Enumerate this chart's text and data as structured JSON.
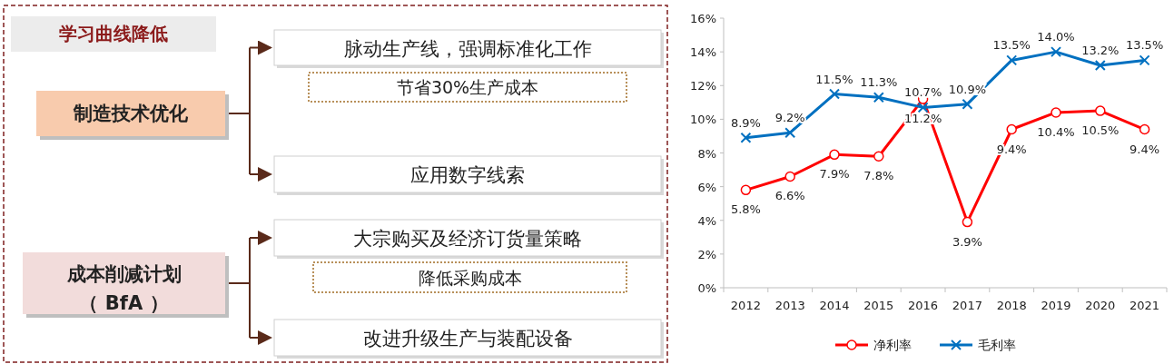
{
  "chart_data": [
    {
      "type": "other",
      "title": "学习曲线降低",
      "annotations": [
        "制造技术优化",
        "脉动生产线，强调标准化工作",
        "节省30%生产成本",
        "应用数字线索",
        "成本削减计划",
        "（ BfA ）",
        "大宗购买及经济订货量策略",
        "降低采购成本",
        "改进升级生产与装配设备"
      ]
    },
    {
      "type": "line",
      "categories": [
        "2012",
        "2013",
        "2014",
        "2015",
        "2016",
        "2017",
        "2018",
        "2019",
        "2020",
        "2021"
      ],
      "series": [
        {
          "name": "净利率",
          "color": "#ff0000",
          "marker": "circle",
          "values": [
            5.8,
            6.6,
            7.9,
            7.8,
            11.2,
            3.9,
            9.4,
            10.4,
            10.5,
            9.4
          ],
          "value_labels": [
            "5.8%",
            "6.6%",
            "7.9%",
            "7.8%",
            "11.2%",
            "3.9%",
            "9.4%",
            "10.4%",
            "10.5%",
            "9.4%"
          ]
        },
        {
          "name": "毛利率",
          "color": "#0070c0",
          "marker": "cross",
          "values": [
            8.9,
            9.2,
            11.5,
            11.3,
            10.7,
            10.9,
            13.5,
            14.0,
            13.2,
            13.5
          ],
          "value_labels": [
            "8.9%",
            "9.2%",
            "11.5%",
            "11.3%",
            "10.7%",
            "10.9%",
            "13.5%",
            "14.0%",
            "13.2%",
            "13.5%"
          ]
        }
      ],
      "ylim": [
        0,
        16
      ],
      "yticks": [
        {
          "value": 0,
          "label": "0%"
        },
        {
          "value": 2,
          "label": "2%"
        },
        {
          "value": 4,
          "label": "4%"
        },
        {
          "value": 6,
          "label": "6%"
        },
        {
          "value": 8,
          "label": "8%"
        },
        {
          "value": 10,
          "label": "10%"
        },
        {
          "value": 12,
          "label": "12%"
        },
        {
          "value": 14,
          "label": "14%"
        },
        {
          "value": 16,
          "label": "16%"
        }
      ],
      "grid": false,
      "legend": "bottom"
    }
  ]
}
